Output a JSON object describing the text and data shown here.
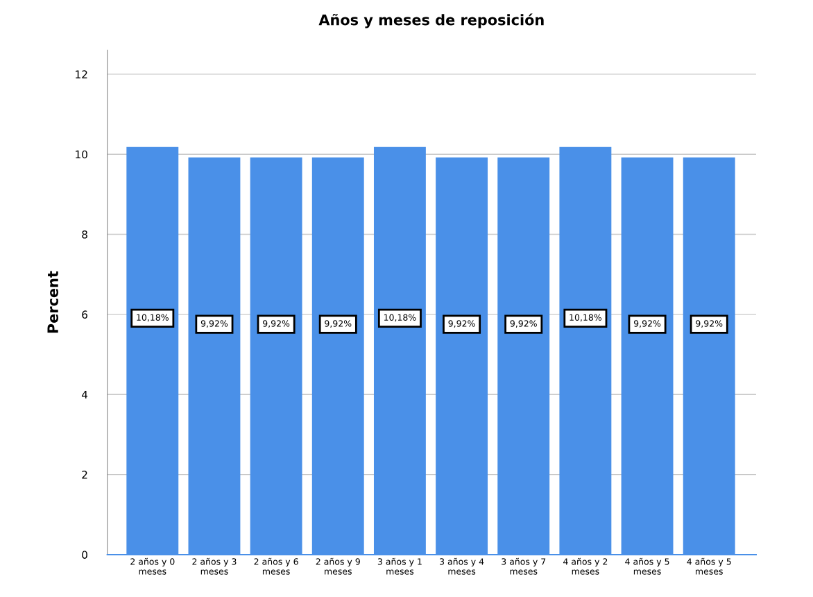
{
  "chart_data": {
    "type": "bar",
    "title": "Años y meses de reposición",
    "ylabel": "Percent",
    "categories": [
      "2 años y 0\nmeses",
      "2 años y 3\nmeses",
      "2 años y 6\nmeses",
      "2 años y 9\nmeses",
      "3 años y 1\nmeses",
      "3 años y 4\nmeses",
      "3 años y 7\nmeses",
      "4 años y 2\nmeses",
      "4 años y 5\nmeses",
      "4 años y 5\nmeses"
    ],
    "values": [
      10.18,
      9.92,
      9.92,
      9.92,
      10.18,
      9.92,
      9.92,
      10.18,
      9.92,
      9.92
    ],
    "value_labels": [
      "10,18%",
      "9,92%",
      "9,92%",
      "9,92%",
      "10,18%",
      "9,92%",
      "9,92%",
      "10,18%",
      "9,92%",
      "9,92%"
    ],
    "color": "#4a90e8",
    "ylim": [
      0,
      12.6
    ],
    "yticks": [
      0,
      2,
      4,
      6,
      8,
      10,
      12
    ],
    "grid": "y",
    "legend": false
  }
}
